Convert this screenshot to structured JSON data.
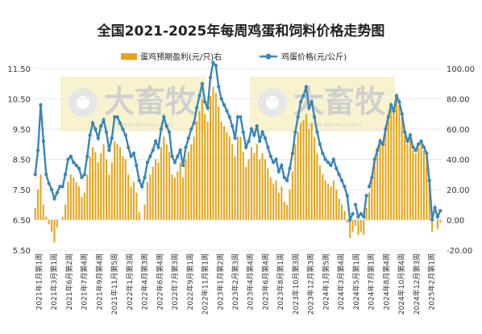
{
  "chart_data": {
    "type": "bar+line",
    "title": "全国2021-2025年每周鸡蛋和饲料价格走势图",
    "legend": [
      {
        "label": "蛋鸡预期盈利(元/只)右",
        "color": "#e8a317",
        "marker": "bar"
      },
      {
        "label": "鸡蛋价格(元/公斤)",
        "color": "#3a86b6",
        "marker": "line-dot"
      }
    ],
    "left_axis": {
      "ticks": [
        "5.50",
        "6.50",
        "7.50",
        "8.50",
        "9.50",
        "10.50",
        "11.50"
      ],
      "min": 5.5,
      "max": 11.5
    },
    "right_axis": {
      "ticks": [
        "-20.00",
        "0.00",
        "20.00",
        "40.00",
        "60.00",
        "80.00",
        "100.00"
      ],
      "min": -20,
      "max": 100
    },
    "x_tick_labels": [
      "2021年1月第1周",
      "2021年3月第1周",
      "2021年6月第2周",
      "2021年7月第4周",
      "2021年9月第4周",
      "2021年11月第5周",
      "2022年1月第3周",
      "2022年4月第3周",
      "2022年6月第4周",
      "2022年7月第3周",
      "2022年9月第1周",
      "2022年11月第1周",
      "2023年1月第2周",
      "2023年2月第3周",
      "2023年4月第4周",
      "2023年6月第4周",
      "2023年8月第1周",
      "2023年10月第3周",
      "2023年12月第3周",
      "2024年1月第5周",
      "2024年3月第4周",
      "2024年5月第1周",
      "2024年7月第1周",
      "2024年8月第4周",
      "2024年10月第4周",
      "2024年12月第3周",
      "2025年2月第1周"
    ],
    "egg_price_series": {
      "name": "鸡蛋价格(元/公斤)",
      "values": [
        8.0,
        8.8,
        10.3,
        9.1,
        8.0,
        7.7,
        7.5,
        7.2,
        7.4,
        7.6,
        7.6,
        8.0,
        8.5,
        8.6,
        8.4,
        8.3,
        8.2,
        7.9,
        8.0,
        8.6,
        9.3,
        9.7,
        9.5,
        9.2,
        9.6,
        9.8,
        9.4,
        8.8,
        9.2,
        9.9,
        9.9,
        9.7,
        9.5,
        9.3,
        8.9,
        8.6,
        8.7,
        8.3,
        7.8,
        7.6,
        7.9,
        8.4,
        8.6,
        8.8,
        9.1,
        8.9,
        9.5,
        9.9,
        9.6,
        9.4,
        8.6,
        8.4,
        8.6,
        8.8,
        8.3,
        8.9,
        9.2,
        9.5,
        9.7,
        10.2,
        10.6,
        11.0,
        10.4,
        10.2,
        11.2,
        11.7,
        11.6,
        10.9,
        10.5,
        10.3,
        10.1,
        9.9,
        9.6,
        9.2,
        9.9,
        9.9,
        9.4,
        8.9,
        9.1,
        9.5,
        9.3,
        9.6,
        9.1,
        9.4,
        9.2,
        8.9,
        8.6,
        8.4,
        8.5,
        8.1,
        8.3,
        7.9,
        7.8,
        8.2,
        8.7,
        9.4,
        9.9,
        10.4,
        10.6,
        10.9,
        10.2,
        10.4,
        9.9,
        9.4,
        9.0,
        8.7,
        8.5,
        8.4,
        8.3,
        8.5,
        8.2,
        8.0,
        7.8,
        7.6,
        7.3,
        6.5,
        6.7,
        7.0,
        6.6,
        6.7,
        6.6,
        7.3,
        7.6,
        7.9,
        8.5,
        8.8,
        9.1,
        9.0,
        9.5,
        9.9,
        10.3,
        10.1,
        10.6,
        10.4,
        10.0,
        9.4,
        9.1,
        9.3,
        8.9,
        8.8,
        9.0,
        9.1,
        8.9,
        8.7,
        7.8,
        6.5,
        6.9,
        6.6,
        6.8
      ]
    },
    "profit_series": {
      "name": "蛋鸡预期盈利(元/只)右",
      "values": [
        8,
        20,
        30,
        10,
        2,
        -3,
        -8,
        -15,
        -5,
        0,
        2,
        10,
        25,
        30,
        28,
        25,
        22,
        15,
        18,
        30,
        42,
        48,
        45,
        38,
        44,
        50,
        40,
        30,
        38,
        52,
        50,
        48,
        42,
        40,
        30,
        22,
        25,
        18,
        5,
        0,
        10,
        25,
        30,
        35,
        40,
        38,
        48,
        55,
        50,
        45,
        30,
        28,
        32,
        38,
        28,
        40,
        45,
        50,
        55,
        65,
        72,
        80,
        70,
        65,
        82,
        88,
        84,
        75,
        65,
        62,
        58,
        55,
        50,
        42,
        55,
        55,
        45,
        35,
        40,
        48,
        44,
        50,
        40,
        44,
        40,
        34,
        28,
        24,
        26,
        18,
        22,
        12,
        10,
        20,
        32,
        50,
        58,
        64,
        66,
        70,
        60,
        64,
        55,
        44,
        36,
        30,
        26,
        24,
        22,
        26,
        20,
        14,
        10,
        6,
        -2,
        -12,
        -8,
        -4,
        -10,
        -8,
        -10,
        8,
        18,
        28,
        40,
        48,
        54,
        52,
        62,
        70,
        76,
        72,
        80,
        76,
        68,
        56,
        50,
        54,
        46,
        44,
        48,
        50,
        46,
        42,
        24,
        -8,
        0,
        -6,
        -2
      ]
    }
  },
  "watermark": {
    "brand": "大畜牧",
    "url": "www.dxumu.com"
  }
}
